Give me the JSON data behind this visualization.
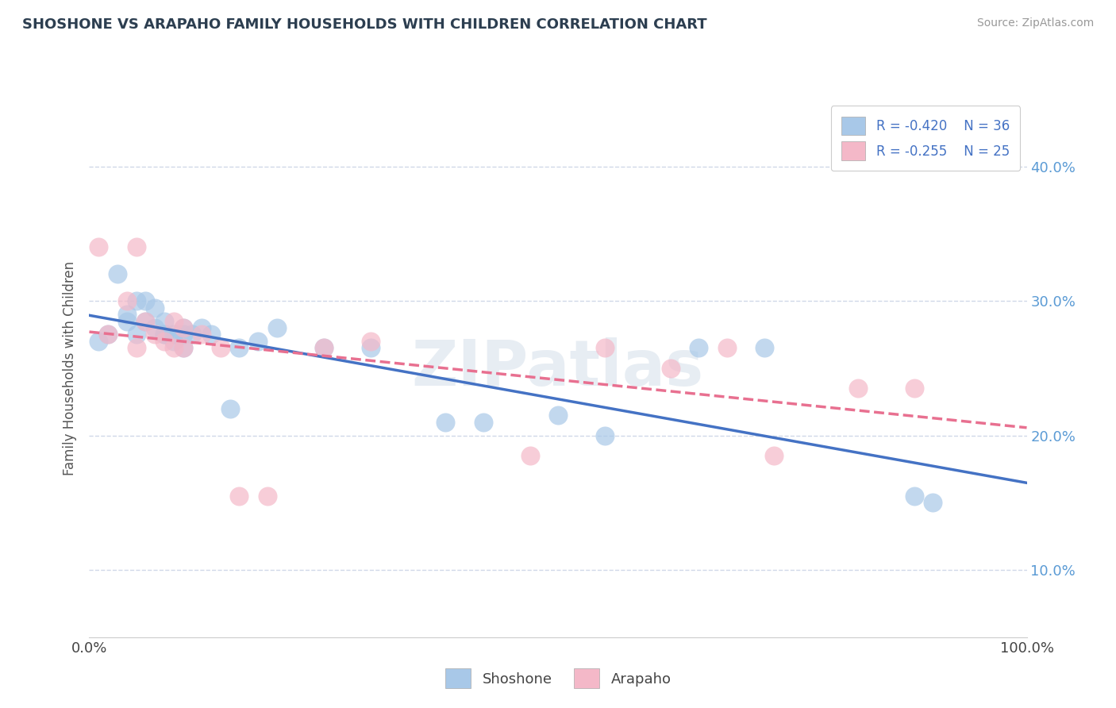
{
  "title": "SHOSHONE VS ARAPAHO FAMILY HOUSEHOLDS WITH CHILDREN CORRELATION CHART",
  "source": "Source: ZipAtlas.com",
  "ylabel": "Family Households with Children",
  "xlim": [
    0.0,
    1.0
  ],
  "ylim": [
    0.05,
    0.45
  ],
  "yticks": [
    0.1,
    0.2,
    0.3,
    0.4
  ],
  "ytick_labels": [
    "10.0%",
    "20.0%",
    "30.0%",
    "40.0%"
  ],
  "xtick_labels_left": "0.0%",
  "xtick_labels_right": "100.0%",
  "legend_r1": "R = -0.420",
  "legend_n1": "N = 36",
  "legend_r2": "R = -0.255",
  "legend_n2": "N = 25",
  "shoshone_color": "#a8c8e8",
  "arapaho_color": "#f4b8c8",
  "shoshone_line_color": "#4472c4",
  "arapaho_line_color": "#e87090",
  "background_color": "#ffffff",
  "grid_color": "#d0d8e8",
  "watermark": "ZIPatlas",
  "shoshone_x": [
    0.01,
    0.02,
    0.03,
    0.04,
    0.04,
    0.05,
    0.05,
    0.06,
    0.06,
    0.07,
    0.07,
    0.08,
    0.08,
    0.08,
    0.09,
    0.09,
    0.1,
    0.1,
    0.1,
    0.11,
    0.12,
    0.13,
    0.15,
    0.16,
    0.18,
    0.2,
    0.25,
    0.3,
    0.38,
    0.42,
    0.5,
    0.55,
    0.65,
    0.72,
    0.88,
    0.9
  ],
  "shoshone_y": [
    0.27,
    0.275,
    0.32,
    0.285,
    0.29,
    0.3,
    0.275,
    0.3,
    0.285,
    0.295,
    0.28,
    0.285,
    0.275,
    0.275,
    0.275,
    0.27,
    0.28,
    0.275,
    0.265,
    0.275,
    0.28,
    0.275,
    0.22,
    0.265,
    0.27,
    0.28,
    0.265,
    0.265,
    0.21,
    0.21,
    0.215,
    0.2,
    0.265,
    0.265,
    0.155,
    0.15
  ],
  "arapaho_x": [
    0.01,
    0.02,
    0.04,
    0.05,
    0.05,
    0.06,
    0.07,
    0.08,
    0.09,
    0.09,
    0.1,
    0.1,
    0.12,
    0.14,
    0.16,
    0.19,
    0.25,
    0.3,
    0.47,
    0.55,
    0.62,
    0.68,
    0.73,
    0.82,
    0.88
  ],
  "arapaho_y": [
    0.34,
    0.275,
    0.3,
    0.34,
    0.265,
    0.285,
    0.275,
    0.27,
    0.285,
    0.265,
    0.28,
    0.265,
    0.275,
    0.265,
    0.155,
    0.155,
    0.265,
    0.27,
    0.185,
    0.265,
    0.25,
    0.265,
    0.185,
    0.235,
    0.235
  ]
}
